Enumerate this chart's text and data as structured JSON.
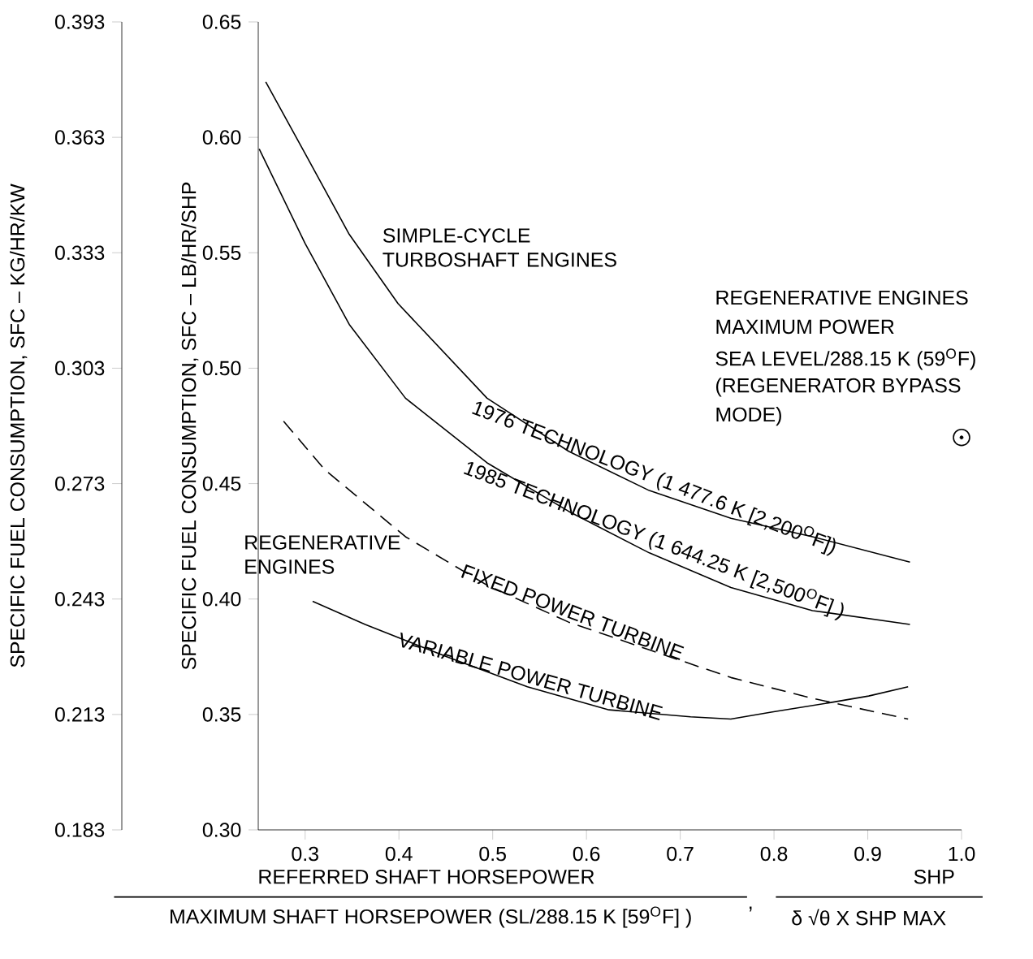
{
  "chart_data": {
    "type": "line",
    "xlabel": "REFERRED SHAFT HORSEPOWER",
    "ylabel": "SPECIFIC FUEL CONSUMPTION, SFC – LB/HR/SHP",
    "y2label": "SPECIFIC FUEL CONSUMPTION, SFC – KG/HR/KW",
    "annotations": [
      "SIMPLE-CYCLE TURBOSHAFT ENGINES",
      "REGENERATIVE ENGINES",
      "REGENERATIVE ENGINES",
      "MAXIMUM POWER",
      "SEA LEVEL/288.15 K (59$^{O}$F)",
      "(REGENERATOR BYPASS",
      "MODE)",
      "MAXIMUM SHAFT HORSEPOWER (SL/288.15 K [59$^{O}$F] )",
      ",",
      "SHP",
      "δ √θ X SHP MAX"
    ],
    "xlim": [
      0.25,
      1.0
    ],
    "xticks": [
      0.3,
      0.4,
      0.5,
      0.6,
      0.7,
      0.8,
      0.9,
      {
        "value": 1.0,
        "label": "1.0"
      }
    ],
    "ylim": [
      0.3,
      0.65
    ],
    "yticks": [
      {
        "value": 0.3,
        "label": "0.30"
      },
      0.35,
      {
        "value": 0.4,
        "label": "0.40"
      },
      0.45,
      {
        "value": 0.5,
        "label": "0.50"
      },
      0.55,
      {
        "value": 0.6,
        "label": "0.60"
      },
      0.65
    ],
    "y2lim": [
      0.183,
      0.393
    ],
    "y2ticks": [
      0.183,
      0.213,
      0.243,
      0.273,
      0.303,
      0.333,
      0.363,
      0.393
    ],
    "grid": false,
    "legend": false,
    "marker": "none",
    "series": [
      {
        "name": "1976 TECHNOLOGY (1 477.6 K [2,200$^{O}$F])",
        "color": "#000000",
        "line_style": "solid",
        "x": [
          0.258,
          0.3,
          0.347,
          0.399,
          0.494,
          0.581,
          0.667,
          0.754,
          0.841,
          0.945
        ],
        "values": [
          0.624,
          0.593,
          0.558,
          0.528,
          0.487,
          0.464,
          0.447,
          0.435,
          0.427,
          0.416
        ]
      },
      {
        "name": "1985 TECHNOLOGY (1 644.25 K [2,500$^{O}$F] )",
        "color": "#000000",
        "line_style": "solid",
        "x": [
          0.251,
          0.3,
          0.347,
          0.407,
          0.494,
          0.581,
          0.667,
          0.754,
          0.841,
          0.945
        ],
        "values": [
          0.595,
          0.554,
          0.519,
          0.487,
          0.459,
          0.438,
          0.42,
          0.405,
          0.395,
          0.389
        ]
      },
      {
        "name": "FIXED POWER TURBINE",
        "color": "#000000",
        "line_style": "dashed",
        "x": [
          0.277,
          0.321,
          0.407,
          0.494,
          0.581,
          0.667,
          0.754,
          0.841,
          0.943
        ],
        "values": [
          0.477,
          0.456,
          0.427,
          0.406,
          0.39,
          0.378,
          0.366,
          0.357,
          0.348
        ]
      },
      {
        "name": "VARIABLE POWER TURBINE",
        "color": "#000000",
        "line_style": "solid",
        "x": [
          0.308,
          0.364,
          0.451,
          0.537,
          0.624,
          0.711,
          0.754,
          0.797,
          0.858,
          0.901,
          0.943
        ],
        "values": [
          0.399,
          0.389,
          0.375,
          0.362,
          0.352,
          0.349,
          0.348,
          0.351,
          0.355,
          0.358,
          0.362
        ]
      },
      {
        "type": "scatter",
        "color": "#000000",
        "marker": "circle",
        "x": [
          1.0
        ],
        "values": [
          0.47
        ]
      }
    ]
  }
}
